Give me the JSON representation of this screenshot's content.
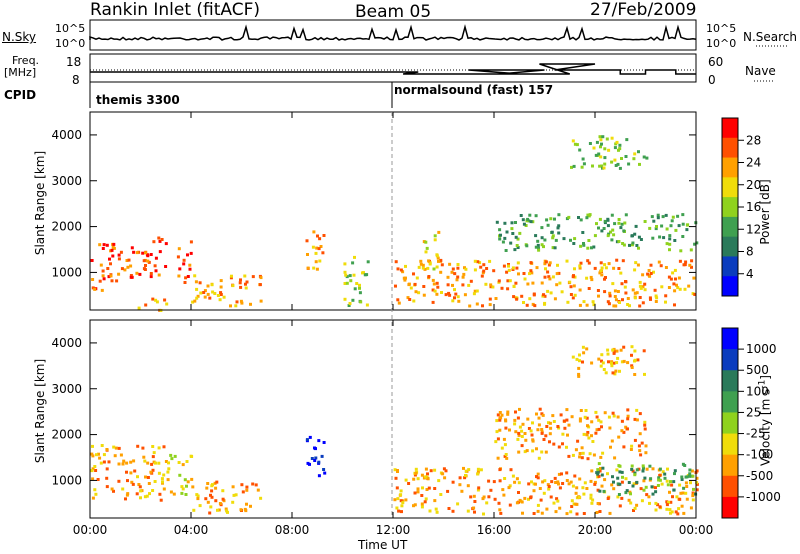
{
  "header": {
    "title": "Rankin Inlet (fitACF)",
    "beam": "Beam 05",
    "date": "27/Feb/2009"
  },
  "aux": {
    "nsky_label": "N.Sky",
    "nsky_ticks": [
      "10^5",
      "10^0"
    ],
    "nsearch_label": "N.Search",
    "nsearch_ticks": [
      "10^5",
      "10^0"
    ],
    "freq_label": "Freq.",
    "freq_unit": "[MHz]",
    "freq_ticks": [
      "18",
      "8"
    ],
    "nave_label": "Nave",
    "nave_ticks": [
      "60",
      "0"
    ],
    "cpid_label": "CPID",
    "cpid_entries": [
      "themis 3300",
      "normalsound (fast) 157"
    ]
  },
  "colors": {
    "scale": [
      "#0000ff",
      "#0a3cbe",
      "#2a7a5a",
      "#3fa050",
      "#8fd21e",
      "#f0dc0a",
      "#ffa000",
      "#ff5000",
      "#ff0000"
    ],
    "accent_line": "#000000"
  },
  "chart_data": [
    {
      "type": "heatmap",
      "name": "power",
      "ylabel": "Slant Range [km]",
      "ylim": [
        180,
        4500
      ],
      "yticks": [
        "1000",
        "2000",
        "3000",
        "4000"
      ],
      "xticks": [
        "00:00",
        "04:00",
        "08:00",
        "12:00",
        "16:00",
        "20:00",
        "00:00"
      ],
      "colorbar": {
        "label": "Power [dB]",
        "ticks": [
          "4",
          "8",
          "12",
          "16",
          "20",
          "24",
          "28"
        ]
      },
      "regions": [
        {
          "t0": 0.0,
          "t1": 1.0,
          "r0": 600,
          "r1": 1800,
          "level": 7
        },
        {
          "t0": 1.0,
          "t1": 3.0,
          "r0": 900,
          "r1": 1800,
          "level": 7
        },
        {
          "t0": 1.8,
          "t1": 3.0,
          "r0": 200,
          "r1": 500,
          "level": 6
        },
        {
          "t0": 3.4,
          "t1": 4.0,
          "r0": 800,
          "r1": 1700,
          "level": 7
        },
        {
          "t0": 4.0,
          "t1": 6.8,
          "r0": 300,
          "r1": 1000,
          "level": 6
        },
        {
          "t0": 8.5,
          "t1": 9.3,
          "r0": 1100,
          "r1": 2000,
          "level": 6
        },
        {
          "t0": 10.0,
          "t1": 11.0,
          "r0": 300,
          "r1": 1400,
          "level": 4
        },
        {
          "t0": 12.0,
          "t1": 24.0,
          "r0": 300,
          "r1": 1300,
          "level": 6
        },
        {
          "t0": 13.0,
          "t1": 13.8,
          "r0": 1100,
          "r1": 2000,
          "level": 5
        },
        {
          "t0": 16.0,
          "t1": 24.0,
          "r0": 1500,
          "r1": 2300,
          "level": 3
        },
        {
          "t0": 19.0,
          "t1": 22.0,
          "r0": 3300,
          "r1": 4000,
          "level": 4
        }
      ]
    },
    {
      "type": "heatmap",
      "name": "velocity",
      "ylabel": "Slant Range [km]",
      "ylim": [
        180,
        4500
      ],
      "yticks": [
        "1000",
        "2000",
        "3000",
        "4000"
      ],
      "xticks": [
        "00:00",
        "04:00",
        "08:00",
        "12:00",
        "16:00",
        "20:00",
        "00:00"
      ],
      "xlabel": "Time UT",
      "colorbar": {
        "label": "Velocity [m s",
        "label_exp": "-1",
        "ticks": [
          "1000",
          "500",
          "100",
          "25",
          "-25",
          "-100",
          "-500",
          "-1000"
        ]
      },
      "regions": [
        {
          "t0": 0.0,
          "t1": 3.0,
          "r0": 600,
          "r1": 1800,
          "level": 6
        },
        {
          "t0": 3.0,
          "t1": 4.0,
          "r0": 700,
          "r1": 1600,
          "level": 5
        },
        {
          "t0": 4.0,
          "t1": 6.8,
          "r0": 300,
          "r1": 1000,
          "level": 6
        },
        {
          "t0": 8.5,
          "t1": 9.3,
          "r0": 1100,
          "r1": 2000,
          "level": 0
        },
        {
          "t0": 12.0,
          "t1": 24.0,
          "r0": 300,
          "r1": 1300,
          "level": 6
        },
        {
          "t0": 20.0,
          "t1": 24.0,
          "r0": 700,
          "r1": 1400,
          "level": 3
        },
        {
          "t0": 16.0,
          "t1": 22.0,
          "r0": 1500,
          "r1": 2600,
          "level": 6
        },
        {
          "t0": 19.0,
          "t1": 22.0,
          "r0": 3300,
          "r1": 4000,
          "level": 6
        }
      ]
    }
  ]
}
